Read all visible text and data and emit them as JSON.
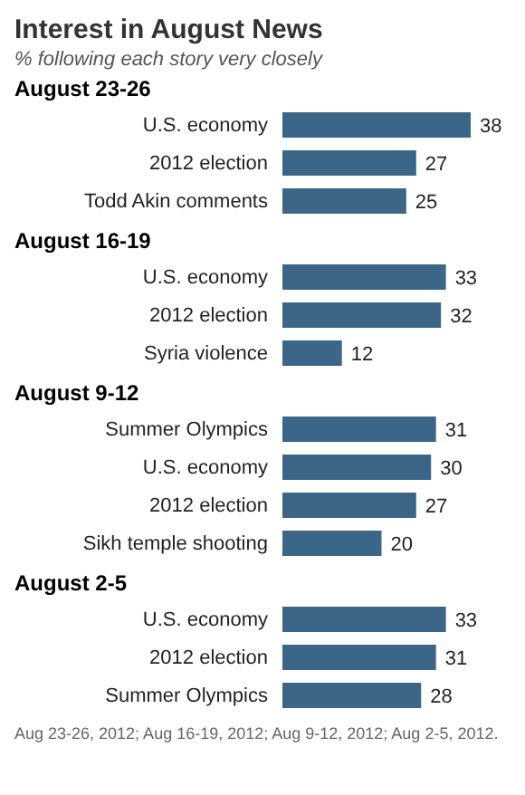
{
  "chart_data": [
    {
      "type": "other",
      "title": "Interest in August News",
      "subtitle": "% following each story very closely"
    },
    {
      "type": "bar",
      "orientation": "horizontal",
      "title": "August 23-26",
      "categories": [
        "U.S. economy",
        "2012 election",
        "Todd Akin comments"
      ],
      "values": [
        38,
        27,
        25
      ],
      "color": "#3b6688",
      "data_labels": true
    },
    {
      "type": "bar",
      "orientation": "horizontal",
      "title": "August 16-19",
      "categories": [
        "U.S. economy",
        "2012 election",
        "Syria violence"
      ],
      "values": [
        33,
        32,
        12
      ],
      "color": "#3b6688",
      "data_labels": true
    },
    {
      "type": "bar",
      "orientation": "horizontal",
      "title": "August 9-12",
      "categories": [
        "Summer Olympics",
        "U.S. economy",
        "2012 election",
        "Sikh temple shooting"
      ],
      "values": [
        31,
        30,
        27,
        20
      ],
      "color": "#3b6688",
      "data_labels": true
    },
    {
      "type": "bar",
      "orientation": "horizontal",
      "title": "August 2-5",
      "categories": [
        "U.S. economy",
        "2012 election",
        "Summer Olympics"
      ],
      "values": [
        33,
        31,
        28
      ],
      "color": "#3b6688",
      "data_labels": true,
      "annotations": [
        "Aug 23-26, 2012; Aug 16-19, 2012; Aug 9-12, 2012; Aug 2-5, 2012."
      ]
    }
  ]
}
